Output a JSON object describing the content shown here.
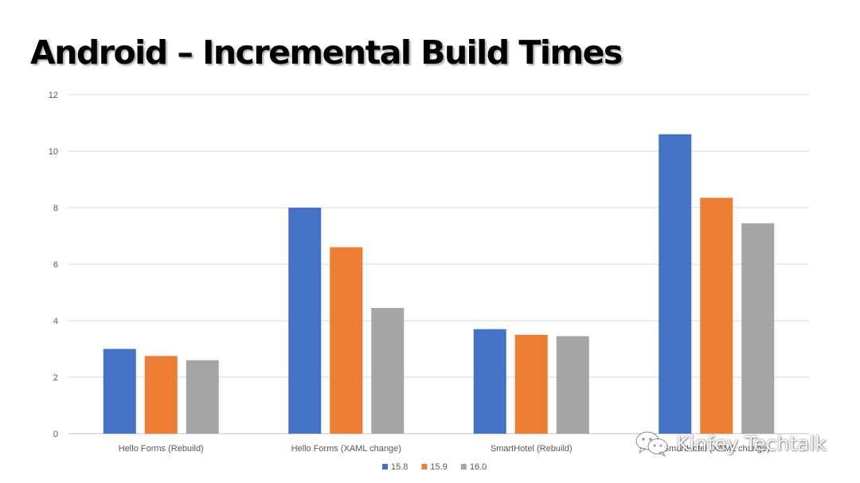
{
  "slide": {
    "title": "Android – Incremental Build Times"
  },
  "watermark": {
    "text": "Kinfey Techtalk",
    "icon": "wechat-icon"
  },
  "chart_data": {
    "type": "bar",
    "categories": [
      "Hello Forms (Rebuild)",
      "Hello Forms (XAML change)",
      "SmartHotel (Rebuild)",
      "SmartHotel (XAML change)"
    ],
    "series": [
      {
        "name": "15.8",
        "color": "#4472C4",
        "values": [
          3.0,
          8.0,
          3.7,
          10.6
        ]
      },
      {
        "name": "15.9",
        "color": "#ED7D31",
        "values": [
          2.75,
          6.6,
          3.5,
          8.35
        ]
      },
      {
        "name": "16.0",
        "color": "#A5A5A5",
        "values": [
          2.6,
          4.45,
          3.45,
          7.45
        ]
      }
    ],
    "ylim": [
      0,
      12
    ],
    "yticks": [
      0,
      2,
      4,
      6,
      8,
      10,
      12
    ],
    "grid": true,
    "legend": "bottom-center",
    "title": "",
    "xlabel": "",
    "ylabel": ""
  }
}
